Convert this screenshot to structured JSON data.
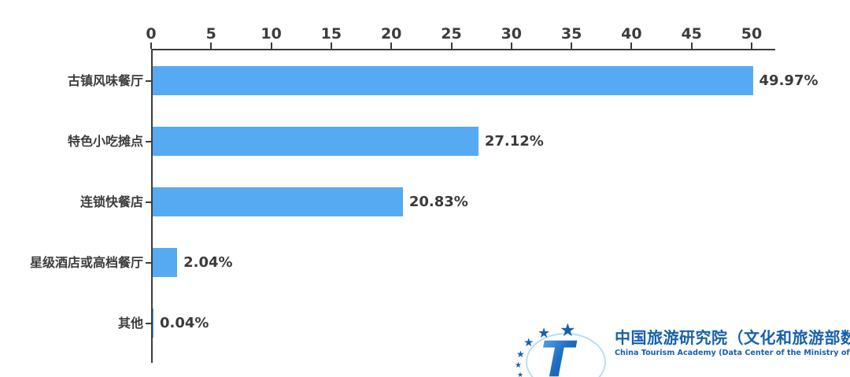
{
  "chart_data": {
    "type": "bar",
    "orientation": "horizontal",
    "title": "",
    "categories": [
      "古镇风味餐厅",
      "特色小吃摊点",
      "连锁快餐店",
      "星级酒店或高档餐厅",
      "其他"
    ],
    "values": [
      49.97,
      27.12,
      20.83,
      2.04,
      0.04
    ],
    "value_labels": [
      "49.97%",
      "27.12%",
      "20.83%",
      "2.04%",
      "0.04%"
    ],
    "xlim": [
      0,
      50
    ],
    "x_ticks": [
      0,
      5,
      10,
      15,
      20,
      25,
      30,
      35,
      40,
      45,
      50
    ],
    "axis_position": "top",
    "grid": false,
    "legend": "none",
    "bar_color": "#56aaf2",
    "axis_color": "#3c3c3c",
    "label_color": "#3a3a3a"
  },
  "branding": {
    "logo_text_cn": "中国旅游研究院（文化和旅游部数据中心）",
    "logo_text_en": "China Tourism Academy (Data Center of the Ministry of Culture and Tourism)",
    "logo_color": "#1660ae",
    "logo_icon": "stars-arc-with-letter-T"
  }
}
